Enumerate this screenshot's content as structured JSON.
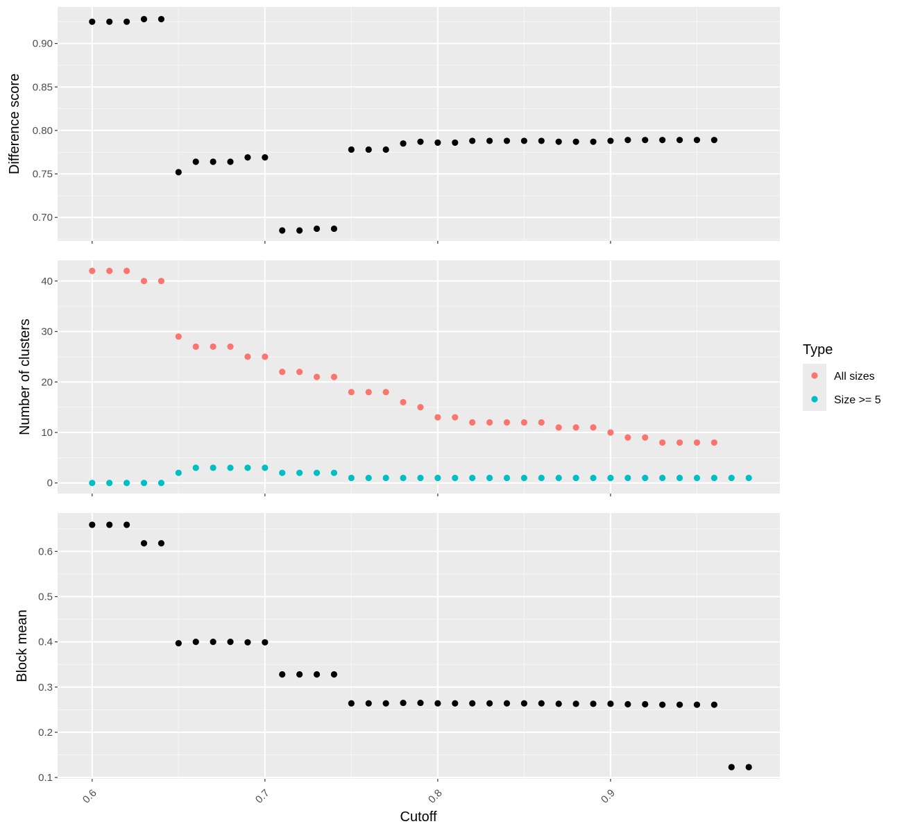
{
  "colors": {
    "panel_bg": "#EBEBEB",
    "grid_major": "#FFFFFF",
    "tick": "#333333",
    "point_black": "#000000",
    "all_sizes": "#F8766D",
    "size_ge5": "#00BFC4",
    "legend_key_bg": "#EBEBEB"
  },
  "legend": {
    "title": "Type",
    "items": [
      {
        "label": "All sizes",
        "color": "#F8766D"
      },
      {
        "label": "Size >= 5",
        "color": "#00BFC4"
      }
    ]
  },
  "chart_data": [
    {
      "type": "scatter",
      "title": "",
      "xlabel": "",
      "ylabel": "Difference score",
      "xlim": [
        0.58,
        0.998
      ],
      "ylim": [
        0.673,
        0.942
      ],
      "x_ticks": [
        0.6,
        0.7,
        0.8,
        0.9
      ],
      "x_ticklabels_shown": false,
      "y_ticks": [
        0.7,
        0.75,
        0.8,
        0.85,
        0.9
      ],
      "y_ticklabels": [
        "0.70",
        "0.75",
        "0.80",
        "0.85",
        "0.90"
      ],
      "grid": true,
      "series": [
        {
          "color": "#000000",
          "x": [
            0.6,
            0.61,
            0.62,
            0.63,
            0.64,
            0.65,
            0.66,
            0.67,
            0.68,
            0.69,
            0.7,
            0.71,
            0.72,
            0.73,
            0.74,
            0.75,
            0.76,
            0.77,
            0.78,
            0.79,
            0.8,
            0.81,
            0.82,
            0.83,
            0.84,
            0.85,
            0.86,
            0.87,
            0.88,
            0.89,
            0.9,
            0.91,
            0.92,
            0.93,
            0.94,
            0.95,
            0.96
          ],
          "y": [
            0.925,
            0.925,
            0.925,
            0.928,
            0.928,
            0.752,
            0.764,
            0.764,
            0.764,
            0.769,
            0.769,
            0.685,
            0.685,
            0.687,
            0.687,
            0.778,
            0.778,
            0.778,
            0.785,
            0.787,
            0.786,
            0.786,
            0.788,
            0.788,
            0.788,
            0.788,
            0.788,
            0.787,
            0.787,
            0.787,
            0.788,
            0.789,
            0.789,
            0.789,
            0.789,
            0.789,
            0.789
          ]
        }
      ]
    },
    {
      "type": "scatter",
      "title": "",
      "xlabel": "",
      "ylabel": "Number of clusters",
      "xlim": [
        0.58,
        0.998
      ],
      "ylim": [
        -2.1,
        44.1
      ],
      "x_ticks": [
        0.6,
        0.7,
        0.8,
        0.9
      ],
      "x_ticklabels_shown": false,
      "y_ticks": [
        0,
        10,
        20,
        30,
        40
      ],
      "y_ticklabels": [
        "0",
        "10",
        "20",
        "30",
        "40"
      ],
      "grid": true,
      "legend_position": "right",
      "series": [
        {
          "name": "All sizes",
          "color": "#F8766D",
          "x": [
            0.6,
            0.61,
            0.62,
            0.63,
            0.64,
            0.65,
            0.66,
            0.67,
            0.68,
            0.69,
            0.7,
            0.71,
            0.72,
            0.73,
            0.74,
            0.75,
            0.76,
            0.77,
            0.78,
            0.79,
            0.8,
            0.81,
            0.82,
            0.83,
            0.84,
            0.85,
            0.86,
            0.87,
            0.88,
            0.89,
            0.9,
            0.91,
            0.92,
            0.93,
            0.94,
            0.95,
            0.96
          ],
          "y": [
            42,
            42,
            42,
            40,
            40,
            29,
            27,
            27,
            27,
            25,
            25,
            22,
            22,
            21,
            21,
            18,
            18,
            18,
            16,
            15,
            13,
            13,
            12,
            12,
            12,
            12,
            12,
            11,
            11,
            11,
            10,
            9,
            9,
            8,
            8,
            8,
            8
          ]
        },
        {
          "name": "Size >= 5",
          "color": "#00BFC4",
          "x": [
            0.6,
            0.61,
            0.62,
            0.63,
            0.64,
            0.65,
            0.66,
            0.67,
            0.68,
            0.69,
            0.7,
            0.71,
            0.72,
            0.73,
            0.74,
            0.75,
            0.76,
            0.77,
            0.78,
            0.79,
            0.8,
            0.81,
            0.82,
            0.83,
            0.84,
            0.85,
            0.86,
            0.87,
            0.88,
            0.89,
            0.9,
            0.91,
            0.92,
            0.93,
            0.94,
            0.95,
            0.96,
            0.97,
            0.98
          ],
          "y": [
            0,
            0,
            0,
            0,
            0,
            2,
            3,
            3,
            3,
            3,
            3,
            2,
            2,
            2,
            2,
            1,
            1,
            1,
            1,
            1,
            1,
            1,
            1,
            1,
            1,
            1,
            1,
            1,
            1,
            1,
            1,
            1,
            1,
            1,
            1,
            1,
            1,
            1,
            1
          ]
        }
      ]
    },
    {
      "type": "scatter",
      "title": "",
      "xlabel": "Cutoff",
      "ylabel": "Block mean",
      "xlim": [
        0.58,
        0.998
      ],
      "ylim": [
        0.097,
        0.685
      ],
      "x_ticks": [
        0.6,
        0.7,
        0.8,
        0.9
      ],
      "x_ticklabels": [
        "0.6",
        "0.7",
        "0.8",
        "0.9"
      ],
      "y_ticks": [
        0.1,
        0.2,
        0.3,
        0.4,
        0.5,
        0.6
      ],
      "y_ticklabels": [
        "0.1",
        "0.2",
        "0.3",
        "0.4",
        "0.5",
        "0.6"
      ],
      "grid": true,
      "series": [
        {
          "color": "#000000",
          "x": [
            0.6,
            0.61,
            0.62,
            0.63,
            0.64,
            0.65,
            0.66,
            0.67,
            0.68,
            0.69,
            0.7,
            0.71,
            0.72,
            0.73,
            0.74,
            0.75,
            0.76,
            0.77,
            0.78,
            0.79,
            0.8,
            0.81,
            0.82,
            0.83,
            0.84,
            0.85,
            0.86,
            0.87,
            0.88,
            0.89,
            0.9,
            0.91,
            0.92,
            0.93,
            0.94,
            0.95,
            0.96,
            0.97,
            0.98
          ],
          "y": [
            0.659,
            0.659,
            0.659,
            0.618,
            0.618,
            0.397,
            0.4,
            0.4,
            0.4,
            0.399,
            0.399,
            0.328,
            0.328,
            0.328,
            0.328,
            0.264,
            0.264,
            0.264,
            0.265,
            0.265,
            0.264,
            0.264,
            0.264,
            0.264,
            0.264,
            0.264,
            0.264,
            0.263,
            0.263,
            0.263,
            0.263,
            0.262,
            0.262,
            0.261,
            0.261,
            0.261,
            0.261,
            0.123,
            0.123
          ]
        }
      ]
    }
  ]
}
